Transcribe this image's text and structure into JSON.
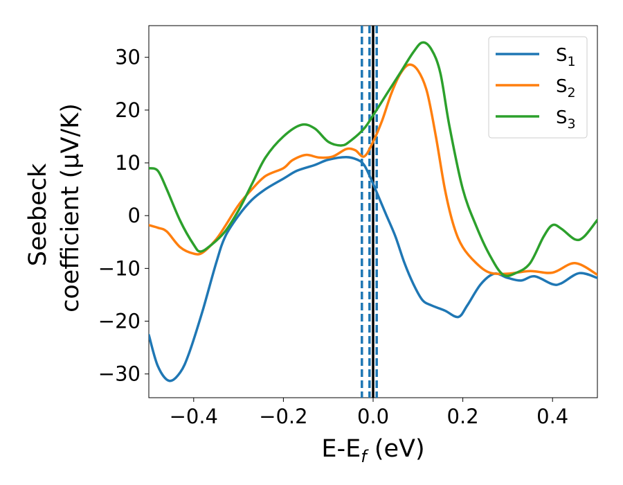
{
  "chart_data": {
    "type": "line",
    "xlabel_main": "E-E",
    "xlabel_sub": "f",
    "xlabel_unit": " (eV)",
    "ylabel_line1": "Seebeck",
    "ylabel_line2": "coefficient  (μV/K)",
    "xlim": [
      -0.5,
      0.5
    ],
    "ylim": [
      -34.5,
      36
    ],
    "xticks": [
      -0.4,
      -0.2,
      0.0,
      0.2,
      0.4
    ],
    "xtick_labels": [
      "−0.4",
      "−0.2",
      "0.0",
      "0.2",
      "0.4"
    ],
    "yticks": [
      30,
      20,
      10,
      0,
      -10,
      -20,
      -30
    ],
    "ytick_labels": [
      "30",
      "20",
      "10",
      "0",
      "−10",
      "−20",
      "−30"
    ],
    "grid": false,
    "legend_position": "top-right",
    "vlines": [
      {
        "x": -0.025,
        "style": "dashed",
        "color": "#1f77b4"
      },
      {
        "x": -0.008,
        "style": "dashed",
        "color": "#1f77b4"
      },
      {
        "x": 0.008,
        "style": "dashed",
        "color": "#1f77b4"
      },
      {
        "x": 0.0,
        "style": "solid",
        "color": "#000000"
      }
    ],
    "series": [
      {
        "name": "S",
        "sub": "1",
        "color": "#1f77b4",
        "points": [
          [
            -0.5,
            -22.6
          ],
          [
            -0.48,
            -28.5
          ],
          [
            -0.455,
            -31.3
          ],
          [
            -0.43,
            -29.7
          ],
          [
            -0.41,
            -26.0
          ],
          [
            -0.38,
            -18.0
          ],
          [
            -0.35,
            -9.0
          ],
          [
            -0.33,
            -4.0
          ],
          [
            -0.3,
            0.0
          ],
          [
            -0.27,
            3.0
          ],
          [
            -0.24,
            5.0
          ],
          [
            -0.2,
            7.0
          ],
          [
            -0.17,
            8.5
          ],
          [
            -0.13,
            9.6
          ],
          [
            -0.1,
            10.6
          ],
          [
            -0.06,
            11.1
          ],
          [
            -0.035,
            10.6
          ],
          [
            -0.02,
            9.6
          ],
          [
            -0.005,
            7.0
          ],
          [
            0.01,
            4.0
          ],
          [
            0.03,
            0.0
          ],
          [
            0.05,
            -4.0
          ],
          [
            0.07,
            -9.0
          ],
          [
            0.09,
            -13.0
          ],
          [
            0.11,
            -16.0
          ],
          [
            0.13,
            -17.0
          ],
          [
            0.16,
            -18.0
          ],
          [
            0.19,
            -19.2
          ],
          [
            0.21,
            -17.0
          ],
          [
            0.24,
            -13.0
          ],
          [
            0.27,
            -11.0
          ],
          [
            0.3,
            -11.8
          ],
          [
            0.33,
            -12.3
          ],
          [
            0.36,
            -11.5
          ],
          [
            0.4,
            -13.0
          ],
          [
            0.42,
            -12.8
          ],
          [
            0.46,
            -10.9
          ],
          [
            0.5,
            -11.8
          ]
        ]
      },
      {
        "name": "S",
        "sub": "2",
        "color": "#ff7f0e",
        "points": [
          [
            -0.5,
            -1.8
          ],
          [
            -0.48,
            -2.3
          ],
          [
            -0.46,
            -3.0
          ],
          [
            -0.43,
            -6.0
          ],
          [
            -0.4,
            -7.2
          ],
          [
            -0.38,
            -7.0
          ],
          [
            -0.35,
            -4.5
          ],
          [
            -0.33,
            -2.0
          ],
          [
            -0.3,
            2.0
          ],
          [
            -0.27,
            5.0
          ],
          [
            -0.24,
            7.5
          ],
          [
            -0.2,
            9.0
          ],
          [
            -0.18,
            10.5
          ],
          [
            -0.15,
            11.5
          ],
          [
            -0.12,
            11.0
          ],
          [
            -0.09,
            11.2
          ],
          [
            -0.06,
            12.6
          ],
          [
            -0.04,
            12.4
          ],
          [
            -0.02,
            11.2
          ],
          [
            0.0,
            14.0
          ],
          [
            0.02,
            18.0
          ],
          [
            0.04,
            23.0
          ],
          [
            0.06,
            26.8
          ],
          [
            0.08,
            28.6
          ],
          [
            0.1,
            27.5
          ],
          [
            0.12,
            23.5
          ],
          [
            0.14,
            15.0
          ],
          [
            0.16,
            5.0
          ],
          [
            0.18,
            -2.0
          ],
          [
            0.2,
            -6.0
          ],
          [
            0.23,
            -9.0
          ],
          [
            0.26,
            -10.8
          ],
          [
            0.3,
            -11.0
          ],
          [
            0.35,
            -10.5
          ],
          [
            0.4,
            -10.8
          ],
          [
            0.45,
            -9.0
          ],
          [
            0.5,
            -11.2
          ]
        ]
      },
      {
        "name": "S",
        "sub": "3",
        "color": "#2ca02c",
        "points": [
          [
            -0.5,
            9.0
          ],
          [
            -0.48,
            8.5
          ],
          [
            -0.46,
            5.0
          ],
          [
            -0.43,
            -1.0
          ],
          [
            -0.4,
            -5.5
          ],
          [
            -0.385,
            -6.8
          ],
          [
            -0.36,
            -5.5
          ],
          [
            -0.33,
            -3.0
          ],
          [
            -0.3,
            1.0
          ],
          [
            -0.27,
            6.0
          ],
          [
            -0.24,
            11.0
          ],
          [
            -0.2,
            15.0
          ],
          [
            -0.16,
            17.2
          ],
          [
            -0.13,
            16.5
          ],
          [
            -0.1,
            14.0
          ],
          [
            -0.07,
            13.3
          ],
          [
            -0.05,
            14.2
          ],
          [
            -0.02,
            16.5
          ],
          [
            0.0,
            19.0
          ],
          [
            0.03,
            23.0
          ],
          [
            0.06,
            27.0
          ],
          [
            0.09,
            31.0
          ],
          [
            0.11,
            32.8
          ],
          [
            0.13,
            31.5
          ],
          [
            0.15,
            27.0
          ],
          [
            0.17,
            17.0
          ],
          [
            0.2,
            5.0
          ],
          [
            0.23,
            -2.0
          ],
          [
            0.26,
            -7.5
          ],
          [
            0.29,
            -11.2
          ],
          [
            0.32,
            -10.8
          ],
          [
            0.35,
            -9.0
          ],
          [
            0.38,
            -4.0
          ],
          [
            0.4,
            -1.8
          ],
          [
            0.42,
            -2.5
          ],
          [
            0.45,
            -4.5
          ],
          [
            0.47,
            -4.0
          ],
          [
            0.5,
            -0.8
          ]
        ]
      }
    ]
  }
}
